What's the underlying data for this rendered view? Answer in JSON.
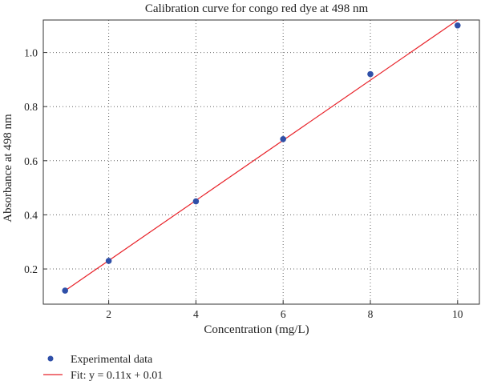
{
  "chart_data": {
    "type": "scatter",
    "title": "Calibration curve for congo red dye at 498 nm",
    "xlabel": "Concentration (mg/L)",
    "ylabel": "Absorbance at 498 nm",
    "xlim": [
      0.5,
      10.5
    ],
    "ylim": [
      0.07,
      1.12
    ],
    "x_ticks": [
      2,
      4,
      6,
      8,
      10
    ],
    "y_ticks": [
      0.2,
      0.4,
      0.6,
      0.8,
      1.0
    ],
    "x_tick_labels": [
      "2",
      "4",
      "6",
      "8",
      "10"
    ],
    "y_tick_labels": [
      "0.2",
      "0.4",
      "0.6",
      "0.8",
      "1.0"
    ],
    "grid": true,
    "series": [
      {
        "name": "Experimental data",
        "kind": "points",
        "color": "#2f4fa8",
        "x": [
          1,
          2,
          4,
          6,
          8,
          10
        ],
        "y": [
          0.12,
          0.23,
          0.45,
          0.68,
          0.92,
          1.1
        ]
      },
      {
        "name": "Fit: y = 0.11x + 0.01",
        "kind": "line",
        "color": "#e8232a",
        "x": [
          1,
          10
        ],
        "y": [
          0.12,
          1.12
        ]
      }
    ],
    "legend_position": "bottom-left"
  }
}
